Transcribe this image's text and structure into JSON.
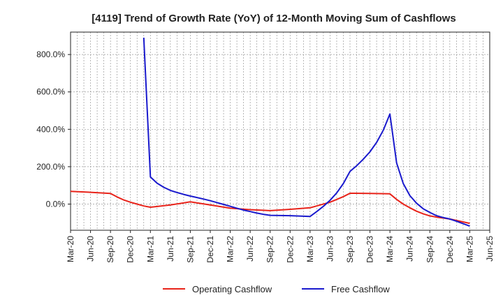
{
  "chart_data": {
    "type": "line",
    "title": "[4119]  Trend of Growth Rate (YoY) of 12-Month Moving Sum of Cashflows",
    "xlabel": "",
    "ylabel": "",
    "ylim": [
      -140,
      920
    ],
    "yticks": [
      0,
      200,
      400,
      600,
      800
    ],
    "ytick_labels": [
      "0.0%",
      "200.0%",
      "400.0%",
      "600.0%",
      "800.0%"
    ],
    "x_start": "Mar-20",
    "x_end": "Jun-25",
    "xtick_labels": [
      "Mar-20",
      "Jun-20",
      "Sep-20",
      "Dec-20",
      "Mar-21",
      "Jun-21",
      "Sep-21",
      "Dec-21",
      "Mar-22",
      "Jun-22",
      "Sep-22",
      "Dec-22",
      "Mar-23",
      "Jun-23",
      "Sep-23",
      "Dec-23",
      "Mar-24",
      "Jun-24",
      "Sep-24",
      "Dec-24",
      "Mar-25",
      "Jun-25"
    ],
    "grid": true,
    "legend_position": "bottom-center",
    "series": [
      {
        "name": "Operating Cashflow",
        "color": "#e8231a",
        "points": [
          [
            "Mar-20",
            68
          ],
          [
            "Jun-20",
            63
          ],
          [
            "Sep-20",
            57
          ],
          [
            "Oct-20",
            38
          ],
          [
            "Nov-20",
            22
          ],
          [
            "Dec-20",
            10
          ],
          [
            "Jan-21",
            0
          ],
          [
            "Feb-21",
            -10
          ],
          [
            "Mar-21",
            -17
          ],
          [
            "Jun-21",
            -5
          ],
          [
            "Sep-21",
            12
          ],
          [
            "Dec-21",
            -5
          ],
          [
            "Mar-22",
            -22
          ],
          [
            "Jun-22",
            -30
          ],
          [
            "Sep-22",
            -35
          ],
          [
            "Dec-22",
            -28
          ],
          [
            "Mar-23",
            -20
          ],
          [
            "Jun-23",
            10
          ],
          [
            "Jul-23",
            25
          ],
          [
            "Aug-23",
            40
          ],
          [
            "Sep-23",
            58
          ],
          [
            "Dec-23",
            57
          ],
          [
            "Mar-24",
            55
          ],
          [
            "Apr-24",
            25
          ],
          [
            "May-24",
            0
          ],
          [
            "Jun-24",
            -20
          ],
          [
            "Jul-24",
            -38
          ],
          [
            "Aug-24",
            -52
          ],
          [
            "Sep-24",
            -63
          ],
          [
            "Oct-24",
            -70
          ],
          [
            "Dec-24",
            -80
          ],
          [
            "Mar-25",
            -103
          ]
        ]
      },
      {
        "name": "Free Cashflow",
        "color": "#1a1acd",
        "points": [
          [
            "Feb-21",
            890
          ],
          [
            "Mar-21",
            145
          ],
          [
            "Apr-21",
            112
          ],
          [
            "May-21",
            90
          ],
          [
            "Jun-21",
            73
          ],
          [
            "Jul-21",
            62
          ],
          [
            "Aug-21",
            52
          ],
          [
            "Sep-21",
            43
          ],
          [
            "Oct-21",
            35
          ],
          [
            "Nov-21",
            27
          ],
          [
            "Dec-21",
            18
          ],
          [
            "Jan-22",
            8
          ],
          [
            "Feb-22",
            -2
          ],
          [
            "Mar-22",
            -12
          ],
          [
            "Apr-22",
            -22
          ],
          [
            "May-22",
            -32
          ],
          [
            "Jun-22",
            -40
          ],
          [
            "Jul-22",
            -48
          ],
          [
            "Aug-22",
            -55
          ],
          [
            "Sep-22",
            -60
          ],
          [
            "Dec-22",
            -62
          ],
          [
            "Mar-23",
            -66
          ],
          [
            "Apr-23",
            -40
          ],
          [
            "May-23",
            -12
          ],
          [
            "Jun-23",
            20
          ],
          [
            "Jul-23",
            60
          ],
          [
            "Aug-23",
            110
          ],
          [
            "Sep-23",
            175
          ],
          [
            "Oct-23",
            205
          ],
          [
            "Nov-23",
            240
          ],
          [
            "Dec-23",
            280
          ],
          [
            "Jan-24",
            330
          ],
          [
            "Feb-24",
            395
          ],
          [
            "Mar-24",
            482
          ],
          [
            "Apr-24",
            220
          ],
          [
            "May-24",
            110
          ],
          [
            "Jun-24",
            45
          ],
          [
            "Jul-24",
            5
          ],
          [
            "Aug-24",
            -25
          ],
          [
            "Sep-24",
            -45
          ],
          [
            "Oct-24",
            -62
          ],
          [
            "Nov-24",
            -72
          ],
          [
            "Dec-24",
            -80
          ],
          [
            "Jan-25",
            -92
          ],
          [
            "Feb-25",
            -105
          ],
          [
            "Mar-25",
            -118
          ]
        ]
      }
    ]
  }
}
